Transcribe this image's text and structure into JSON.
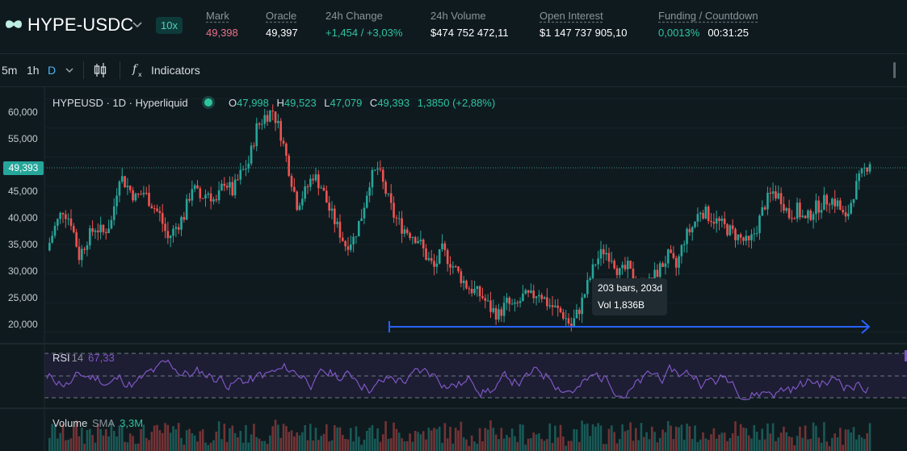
{
  "header": {
    "pair": "HYPE-USDC",
    "leverage": "10x",
    "stats": [
      {
        "label": "Mark",
        "value": "49,398",
        "tone": "red"
      },
      {
        "label": "Oracle",
        "value": "49,397",
        "tone": "white"
      },
      {
        "label": "24h Change",
        "value": "+1,454 / +3,03%",
        "tone": "green"
      },
      {
        "label": "24h Volume",
        "value": "$474 752 472,11",
        "tone": "white"
      },
      {
        "label": "Open Interest",
        "value": "$1 147 737 905,10",
        "tone": "white"
      },
      {
        "label": "Funding / Countdown",
        "value": "0,0013%",
        "value2": "00:31:25",
        "tone": "green"
      }
    ]
  },
  "toolbar": {
    "intervals": [
      "5m",
      "1h",
      "D"
    ],
    "active_interval": "D",
    "indicators_label": "Indicators"
  },
  "chart": {
    "legend_title": "HYPEUSD · 1D · Hyperliquid",
    "ohlc": {
      "o": "47,998",
      "h": "49,523",
      "l": "47,079",
      "c": "49,393",
      "change": "1,3850 (+2,88%)"
    },
    "last_price_tag": "49,393",
    "y_ticks": [
      "60,000",
      "55,000",
      "45,000",
      "40,000",
      "35,000",
      "30,000",
      "25,000",
      "20,000"
    ],
    "measure_tooltip": {
      "line1": "203 bars, 203d",
      "line2": "Vol 1,836B"
    },
    "rsi": {
      "name": "RSI",
      "period": "14",
      "value": "67,33"
    },
    "volume": {
      "name": "Volume",
      "ma": "SMA",
      "value": "3,3M"
    },
    "colors": {
      "up": "#26a69a",
      "down": "#ef5350",
      "rsi": "#7e57c2",
      "measure": "#2962ff",
      "bg": "#0f1a1f"
    }
  },
  "chart_data": {
    "type": "candlestick",
    "ylim": [
      18000,
      62000
    ],
    "ylabel": "",
    "xlabel": "",
    "closes": [
      34000,
      38000,
      41000,
      39000,
      33000,
      36000,
      38000,
      37000,
      39000,
      47000,
      45000,
      43000,
      44000,
      42000,
      40000,
      36000,
      38000,
      40000,
      45000,
      43000,
      44000,
      42000,
      46000,
      44000,
      47000,
      49000,
      55000,
      57000,
      58000,
      54000,
      48000,
      42000,
      44000,
      47000,
      45000,
      41000,
      38000,
      35000,
      36000,
      40000,
      46000,
      48000,
      44000,
      40000,
      38000,
      37000,
      36000,
      33000,
      31000,
      34000,
      32000,
      30000,
      28000,
      27000,
      26000,
      24000,
      23000,
      25000,
      24000,
      26000,
      26000,
      27000,
      25000,
      24000,
      23000,
      21000,
      24000,
      28000,
      32000,
      34000,
      33000,
      30000,
      31000,
      28000,
      27000,
      29000,
      31000,
      33000,
      31000,
      36000,
      38000,
      41000,
      40000,
      39000,
      38000,
      37000,
      36000,
      35000,
      38000,
      42000,
      44000,
      43000,
      40000,
      41000,
      39000,
      41000,
      42000,
      43000,
      42000,
      39000,
      44000,
      47000,
      49393
    ]
  }
}
